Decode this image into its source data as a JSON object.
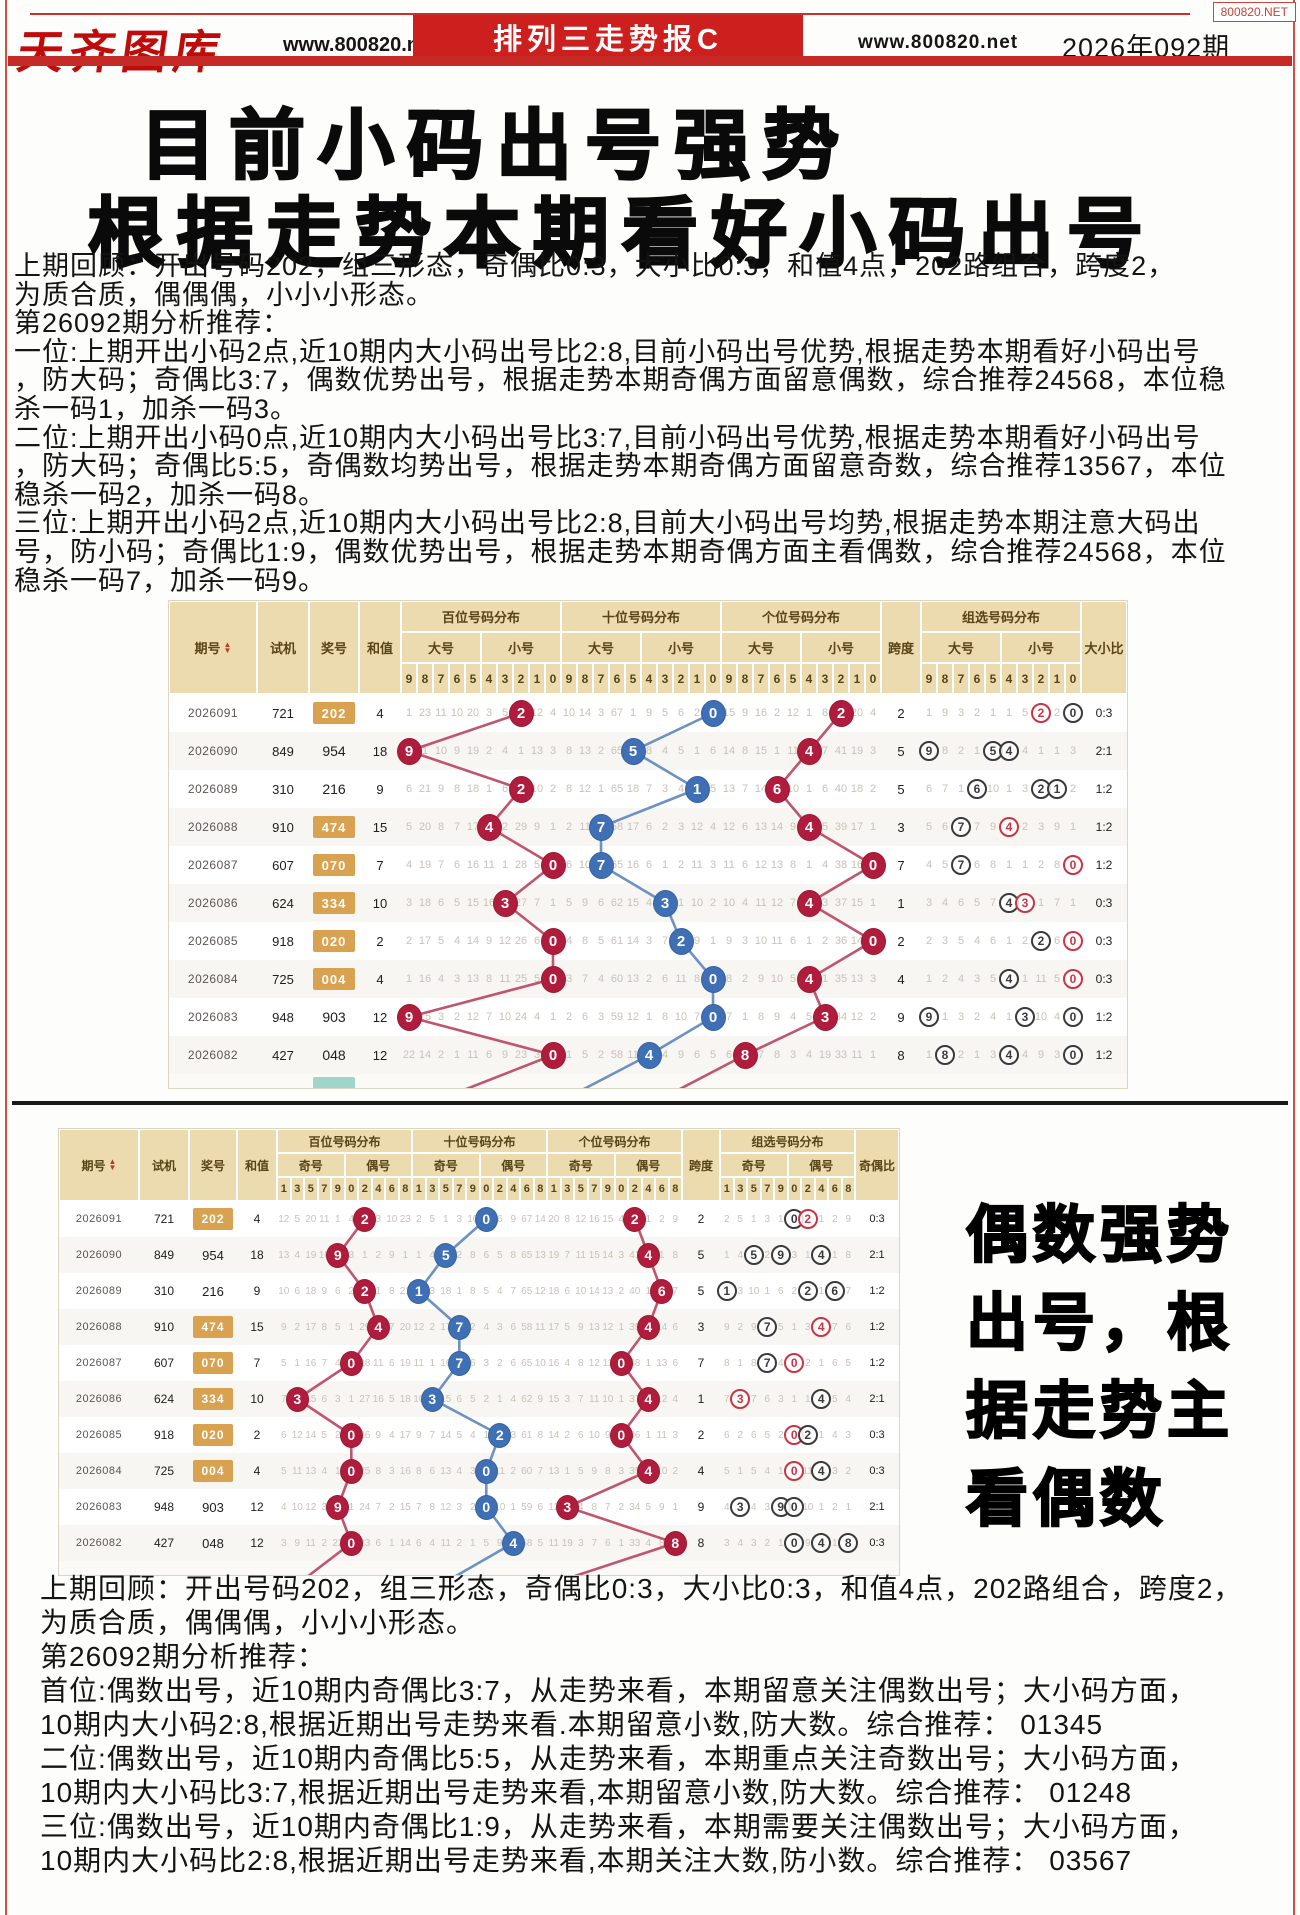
{
  "colors": {
    "accent_red": "#c52a26",
    "banner_red": "#ce1f1f",
    "circle_red": "#b01c3c",
    "circle_blue": "#3f6fb5",
    "line_red": "#c05570",
    "line_blue": "#6c92c4",
    "gold": "#d8a251",
    "header_beige": "#eddbb0",
    "teal": "#9fd6c9",
    "zux_black": "#3a3a3a",
    "zux_red": "#cc3344"
  },
  "masthead": {
    "corner": "800820.NET",
    "logo": "天齐图库",
    "site_left": "www.800820.net",
    "banner": "排列三走势报C",
    "site_right": "www.800820.net",
    "issue": "2026年092期"
  },
  "headline": {
    "line1": "目前小码出号强势",
    "line2": "根据走势本期看好小码出号"
  },
  "top_analysis": [
    "上期回顾：开出号码202，组三形态，奇偶比0:3，大小比0:3，和值4点，202路组合，跨度2，",
    "为质合质，偶偶偶，小小小形态。",
    "第26092期分析推荐：",
    "一位:上期开出小码2点,近10期内大小码出号比2:8,目前小码出号优势,根据走势本期看好小码出号",
    "，防大码；奇偶比3:7，偶数优势出号，根据走势本期奇偶方面留意偶数，综合推荐24568，本位稳",
    "杀一码1，加杀一码3。",
    "二位:上期开出小码0点,近10期内大小码出号比3:7,目前小码出号优势,根据走势本期看好小码出号",
    "，防大码；奇偶比5:5，奇偶数均势出号，根据走势本期奇偶方面留意奇数，综合推荐13567，本位",
    "稳杀一码2，加杀一码8。",
    "三位:上期开出小码2点,近10期内大小码出号比2:8,目前大小码出号均势,根据走势本期注意大码出",
    "号，防小码；奇偶比1:9，偶数优势出号，根据走势本期奇偶方面主看偶数，综合推荐24568，本位",
    "稳杀一码7，加杀一码9。"
  ],
  "side_headline": [
    "偶数强势",
    "出号，根",
    "据走势主",
    "看偶数"
  ],
  "bottom_analysis": [
    "上期回顾：开出号码202，组三形态，奇偶比0:3，大小比0:3，和值4点，202路组合，跨度2，",
    "为质合质，偶偶偶，小小小形态。",
    "第26092期分析推荐：",
    "首位:偶数出号，近10期内奇偶比3:7，从走势来看，本期留意关注偶数出号；大小码方面，",
    "10期内大小码2:8,根据近期出号走势来看.本期留意小数,防大数。综合推荐： 01345",
    "二位:偶数出号，近10期内奇偶比5:5，从走势来看，本期重点关注奇数出号；大小码方面，",
    "10期内大小码比3:7,根据近期出号走势来看,本期留意小数,防大数。综合推荐： 01248",
    "三位:偶数出号，近10期内奇偶比1:9，从走势来看，本期需要关注偶数出号；大小码方面，",
    "10期内大小码比2:8,根据近期出号走势来看,本期关注大数,防小数。综合推荐： 03567"
  ],
  "table_headers": {
    "fixed": [
      "期号",
      "试机",
      "奖号",
      "和值"
    ],
    "kuadu": "跨度",
    "groups": [
      "百位号码分布",
      "十位号码分布",
      "个位号码分布"
    ],
    "zux_group": "组选号码分布",
    "t1": {
      "subs": [
        "大号",
        "小号"
      ],
      "digits": [
        [
          9,
          8,
          7,
          6,
          5
        ],
        [
          4,
          3,
          2,
          1,
          0
        ]
      ],
      "ratio": "大小比"
    },
    "t2": {
      "subs": [
        "奇号",
        "偶号"
      ],
      "digits": [
        [
          1,
          3,
          5,
          7,
          9
        ],
        [
          0,
          2,
          4,
          6,
          8
        ]
      ],
      "ratio": "奇偶比"
    }
  },
  "rows": [
    {
      "period": "2026091",
      "shiji": "721",
      "jiang": "202",
      "gold": true,
      "hezhi": "4",
      "kuadu": "2",
      "dx": "0:3",
      "jo": "0:3",
      "h": {
        "9": "1",
        "8": "23",
        "7": "11",
        "6": "10",
        "5": "20",
        "4": "3",
        "3": "5",
        "1": "12",
        "0": "4"
      },
      "t": {
        "9": "10",
        "8": "14",
        "7": "3",
        "6": "67",
        "5": "1",
        "4": "9",
        "3": "5",
        "2": "6",
        "1": "2"
      },
      "u": {
        "9": "15",
        "8": "9",
        "7": "16",
        "6": "2",
        "5": "12",
        "4": "1",
        "3": "8",
        "1": "20",
        "0": "4"
      },
      "z": {
        "9": "1",
        "8": "9",
        "7": "3",
        "6": "2",
        "5": "1",
        "4": "1",
        "3": "5",
        "1": "2"
      },
      "zc": [
        {
          "d": "2",
          "red": true
        },
        {
          "d": "0",
          "red": false
        }
      ]
    },
    {
      "period": "2026090",
      "shiji": "849",
      "jiang": "954",
      "gold": false,
      "hezhi": "18",
      "kuadu": "5",
      "dx": "2:1",
      "jo": "2:1",
      "h": {
        "8": "1",
        "7": "10",
        "6": "9",
        "5": "19",
        "4": "2",
        "3": "4",
        "2": "1",
        "1": "13",
        "0": "3"
      },
      "t": {
        "9": "8",
        "8": "13",
        "7": "2",
        "6": "65",
        "4": "8",
        "3": "4",
        "2": "5",
        "1": "1",
        "0": "6"
      },
      "u": {
        "9": "14",
        "8": "8",
        "7": "15",
        "6": "1",
        "5": "11",
        "3": "7",
        "2": "41",
        "1": "19",
        "0": "3"
      },
      "z": {
        "8": "8",
        "7": "2",
        "6": "1",
        "3": "4",
        "2": "1",
        "1": "1",
        "0": "3"
      },
      "zc": [
        {
          "d": "9",
          "red": false
        },
        {
          "d": "5",
          "red": false
        },
        {
          "d": "4",
          "red": false
        }
      ]
    },
    {
      "period": "2026089",
      "shiji": "310",
      "jiang": "216",
      "gold": false,
      "hezhi": "9",
      "kuadu": "5",
      "dx": "1:2",
      "jo": "1:2",
      "h": {
        "9": "6",
        "8": "21",
        "7": "9",
        "6": "8",
        "5": "18",
        "4": "1",
        "3": "6",
        "1": "10",
        "0": "2"
      },
      "t": {
        "9": "8",
        "8": "12",
        "7": "1",
        "6": "65",
        "5": "18",
        "4": "7",
        "3": "3",
        "2": "4",
        "0": "5"
      },
      "u": {
        "9": "13",
        "8": "7",
        "7": "14",
        "5": "10",
        "4": "1",
        "3": "6",
        "2": "40",
        "1": "18",
        "0": "2"
      },
      "z": {
        "9": "6",
        "8": "7",
        "7": "1",
        "5": "10",
        "4": "1",
        "3": "3",
        "0": "2"
      },
      "zc": [
        {
          "d": "6",
          "red": false
        },
        {
          "d": "2",
          "red": false
        },
        {
          "d": "1",
          "red": false
        }
      ]
    },
    {
      "period": "2026088",
      "shiji": "910",
      "jiang": "474",
      "gold": true,
      "hezhi": "15",
      "kuadu": "3",
      "dx": "1:2",
      "jo": "1:2",
      "h": {
        "9": "5",
        "8": "20",
        "7": "8",
        "6": "7",
        "5": "17",
        "3": "2",
        "2": "29",
        "1": "9",
        "0": "1"
      },
      "t": {
        "9": "2",
        "8": "11",
        "6": "58",
        "5": "17",
        "4": "6",
        "3": "2",
        "2": "3",
        "1": "12",
        "0": "4"
      },
      "u": {
        "9": "12",
        "8": "6",
        "7": "13",
        "6": "14",
        "5": "9",
        "3": "5",
        "2": "39",
        "1": "17",
        "0": "1"
      },
      "z": {
        "9": "5",
        "8": "6",
        "6": "7",
        "5": "9",
        "3": "2",
        "2": "3",
        "1": "9",
        "0": "1"
      },
      "zc": [
        {
          "d": "7",
          "red": false
        },
        {
          "d": "4",
          "red": true
        }
      ]
    },
    {
      "period": "2026087",
      "shiji": "607",
      "jiang": "070",
      "gold": true,
      "hezhi": "7",
      "kuadu": "7",
      "dx": "1:2",
      "jo": "1:2",
      "h": {
        "9": "4",
        "8": "19",
        "7": "7",
        "6": "6",
        "5": "16",
        "4": "11",
        "3": "1",
        "2": "28",
        "1": "5"
      },
      "t": {
        "9": "6",
        "8": "10",
        "6": "65",
        "5": "16",
        "4": "6",
        "3": "1",
        "2": "2",
        "1": "11",
        "0": "3"
      },
      "u": {
        "9": "11",
        "8": "6",
        "7": "12",
        "6": "13",
        "5": "8",
        "4": "1",
        "3": "4",
        "2": "38",
        "1": "16"
      },
      "z": {
        "9": "4",
        "8": "5",
        "6": "6",
        "5": "8",
        "4": "1",
        "3": "1",
        "2": "2",
        "1": "8"
      },
      "zc": [
        {
          "d": "7",
          "red": false
        },
        {
          "d": "0",
          "red": true
        }
      ]
    },
    {
      "period": "2026086",
      "shiji": "624",
      "jiang": "334",
      "gold": true,
      "hezhi": "10",
      "kuadu": "1",
      "dx": "0:3",
      "jo": "2:1",
      "h": {
        "9": "3",
        "8": "18",
        "7": "6",
        "6": "5",
        "5": "15",
        "4": "16",
        "2": "27",
        "1": "7",
        "0": "1"
      },
      "t": {
        "9": "5",
        "8": "9",
        "7": "6",
        "6": "62",
        "5": "15",
        "4": "4",
        "2": "1",
        "1": "10",
        "0": "2"
      },
      "u": {
        "9": "10",
        "8": "4",
        "7": "11",
        "6": "12",
        "5": "7",
        "3": "3",
        "2": "37",
        "1": "15",
        "0": "1"
      },
      "z": {
        "9": "3",
        "8": "4",
        "7": "6",
        "6": "5",
        "5": "7",
        "2": "1",
        "1": "7",
        "0": "1"
      },
      "zc": [
        {
          "d": "4",
          "red": false
        },
        {
          "d": "3",
          "red": true
        }
      ]
    },
    {
      "period": "2026085",
      "shiji": "918",
      "jiang": "020",
      "gold": true,
      "hezhi": "2",
      "kuadu": "2",
      "dx": "0:3",
      "jo": "0:3",
      "h": {
        "9": "2",
        "8": "17",
        "7": "5",
        "6": "4",
        "5": "14",
        "4": "9",
        "3": "12",
        "2": "26",
        "1": "6"
      },
      "t": {
        "9": "4",
        "8": "8",
        "7": "5",
        "6": "61",
        "5": "14",
        "4": "3",
        "3": "7",
        "1": "9",
        "0": "1"
      },
      "u": {
        "9": "9",
        "8": "3",
        "7": "10",
        "6": "11",
        "5": "6",
        "4": "1",
        "3": "2",
        "2": "36",
        "1": "14"
      },
      "z": {
        "9": "2",
        "8": "3",
        "7": "5",
        "6": "4",
        "5": "6",
        "4": "1",
        "3": "2",
        "1": "6"
      },
      "zc": [
        {
          "d": "2",
          "red": false
        },
        {
          "d": "0",
          "red": true
        }
      ]
    },
    {
      "period": "2026084",
      "shiji": "725",
      "jiang": "004",
      "gold": true,
      "hezhi": "4",
      "kuadu": "4",
      "dx": "0:3",
      "jo": "0:3",
      "h": {
        "9": "1",
        "8": "16",
        "7": "4",
        "6": "3",
        "5": "13",
        "4": "8",
        "3": "11",
        "2": "25",
        "1": "5"
      },
      "t": {
        "9": "3",
        "8": "7",
        "7": "4",
        "6": "60",
        "5": "13",
        "4": "2",
        "3": "6",
        "2": "11",
        "1": "8"
      },
      "u": {
        "9": "8",
        "8": "2",
        "7": "9",
        "6": "10",
        "5": "5",
        "3": "1",
        "2": "35",
        "1": "13",
        "0": "3"
      },
      "z": {
        "9": "1",
        "8": "2",
        "7": "4",
        "6": "3",
        "5": "5",
        "3": "1",
        "2": "11",
        "1": "5"
      },
      "zc": [
        {
          "d": "4",
          "red": false
        },
        {
          "d": "0",
          "red": true
        }
      ]
    },
    {
      "period": "2026083",
      "shiji": "948",
      "jiang": "903",
      "gold": false,
      "hezhi": "12",
      "kuadu": "9",
      "dx": "1:2",
      "jo": "2:1",
      "h": {
        "8": "15",
        "7": "3",
        "6": "2",
        "5": "12",
        "4": "7",
        "3": "10",
        "2": "24",
        "1": "4",
        "0": "1"
      },
      "t": {
        "9": "2",
        "8": "6",
        "7": "3",
        "6": "59",
        "5": "12",
        "4": "1",
        "3": "8",
        "2": "10",
        "1": "7"
      },
      "u": {
        "9": "7",
        "8": "1",
        "7": "8",
        "6": "9",
        "5": "4",
        "4": "5",
        "2": "34",
        "1": "12",
        "0": "2"
      },
      "z": {
        "8": "1",
        "7": "3",
        "6": "2",
        "5": "4",
        "4": "1",
        "2": "10",
        "1": "4"
      },
      "zc": [
        {
          "d": "9",
          "red": false
        },
        {
          "d": "3",
          "red": false
        },
        {
          "d": "0",
          "red": false
        }
      ]
    },
    {
      "period": "2026082",
      "shiji": "427",
      "jiang": "048",
      "gold": false,
      "hezhi": "12",
      "kuadu": "8",
      "dx": "1:2",
      "jo": "0:3",
      "h": {
        "9": "22",
        "8": "14",
        "7": "2",
        "6": "1",
        "5": "11",
        "4": "6",
        "3": "9",
        "2": "23",
        "1": "3"
      },
      "t": {
        "9": "1",
        "8": "5",
        "7": "2",
        "6": "58",
        "5": "11",
        "3": "4",
        "2": "9",
        "1": "6",
        "0": "5"
      },
      "u": {
        "9": "6",
        "7": "7",
        "6": "8",
        "5": "3",
        "4": "4",
        "3": "19",
        "2": "33",
        "1": "11",
        "0": "1"
      },
      "z": {
        "9": "1",
        "7": "2",
        "6": "1",
        "5": "3",
        "3": "4",
        "2": "9",
        "1": "3"
      },
      "zc": [
        {
          "d": "8",
          "red": false
        },
        {
          "d": "4",
          "red": false
        },
        {
          "d": "0",
          "red": false
        }
      ]
    }
  ]
}
